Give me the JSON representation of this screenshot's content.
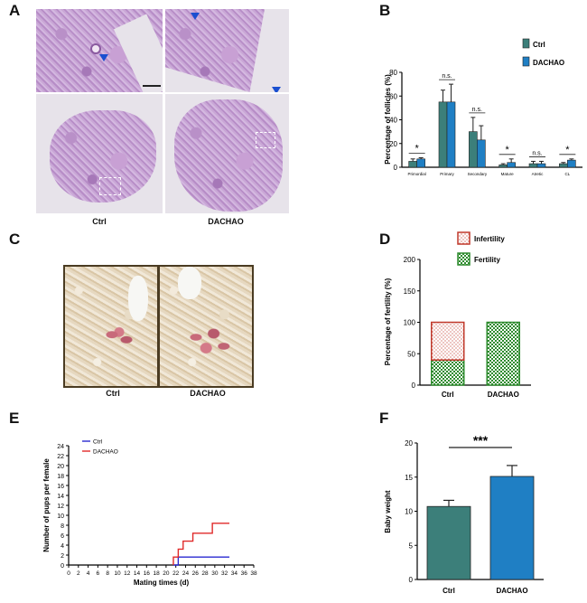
{
  "panels": {
    "A": "A",
    "B": "B",
    "C": "C",
    "D": "D",
    "E": "E",
    "F": "F"
  },
  "panel_a": {
    "captions": [
      "Ctrl",
      "DACHAO"
    ]
  },
  "panel_c": {
    "captions": [
      "Ctrl",
      "DACHAO"
    ]
  },
  "colors": {
    "ctrl_bar": "#3c7f7a",
    "dachao_bar": "#1f7fc4",
    "ctrl_line": "#2a2ad0",
    "dachao_line": "#e02a2a",
    "infertility": "#c0392b",
    "fertility": "#2e8b2e"
  },
  "chart_data": [
    {
      "panel": "B",
      "type": "bar",
      "categories": [
        "Primordial",
        "Primary",
        "Secondary",
        "Mature",
        "Atretic",
        "CL"
      ],
      "series": [
        {
          "name": "Ctrl",
          "values": [
            5,
            55,
            30,
            2,
            3,
            3
          ],
          "errors": [
            2,
            10,
            12,
            1,
            2,
            1
          ]
        },
        {
          "name": "DACHAO",
          "values": [
            7,
            55,
            23,
            4,
            3,
            6
          ],
          "errors": [
            1,
            15,
            12,
            3,
            2,
            1
          ]
        }
      ],
      "significance": [
        "*",
        "n.s.",
        "n.s.",
        "*",
        "n.s.",
        "*"
      ],
      "ylabel": "Percentage of follicles (%)",
      "ylim": [
        0,
        80
      ],
      "yticks": [
        "0",
        "20",
        "40",
        "60",
        "80"
      ],
      "legend": "top-right"
    },
    {
      "panel": "D",
      "type": "bar",
      "stacked": true,
      "categories": [
        "Ctrl",
        "DACHAO"
      ],
      "series": [
        {
          "name": "Infertility",
          "values": [
            60,
            0
          ]
        },
        {
          "name": "Fertility",
          "values": [
            40,
            100
          ]
        }
      ],
      "ylabel": "Percentage of fertility (%)",
      "ylim": [
        0,
        200
      ],
      "yticks": [
        "0",
        "50",
        "100",
        "150",
        "200"
      ],
      "legend": "top"
    },
    {
      "panel": "E",
      "type": "line",
      "step": true,
      "series": [
        {
          "name": "Ctrl",
          "points": [
            [
              21.5,
              0
            ],
            [
              22.5,
              0
            ],
            [
              22.5,
              1.6
            ],
            [
              33,
              1.6
            ]
          ]
        },
        {
          "name": "DACHAO",
          "points": [
            [
              21.5,
              0
            ],
            [
              21.5,
              1.6
            ],
            [
              22.5,
              1.6
            ],
            [
              22.5,
              3.2
            ],
            [
              23.5,
              3.2
            ],
            [
              23.5,
              4.8
            ],
            [
              25.5,
              4.8
            ],
            [
              25.5,
              6.4
            ],
            [
              29.5,
              6.4
            ],
            [
              29.5,
              8.4
            ],
            [
              33,
              8.4
            ]
          ]
        }
      ],
      "xlabel": "Mating times (d)",
      "ylabel": "Number of pups per female",
      "xlim": [
        0,
        38
      ],
      "ylim": [
        0,
        24
      ],
      "xticks": [
        "0",
        "2",
        "4",
        "6",
        "8",
        "10",
        "12",
        "14",
        "16",
        "18",
        "20",
        "22",
        "24",
        "26",
        "28",
        "30",
        "32",
        "34",
        "36",
        "38"
      ],
      "yticks": [
        "0",
        "2",
        "4",
        "6",
        "8",
        "10",
        "12",
        "14",
        "16",
        "18",
        "20",
        "22",
        "24"
      ],
      "legend": "top-left"
    },
    {
      "panel": "F",
      "type": "bar",
      "categories": [
        "Ctrl",
        "DACHAO"
      ],
      "values": [
        10.7,
        15.1
      ],
      "errors": [
        0.9,
        1.6
      ],
      "significance": "***",
      "ylabel": "Baby weight",
      "ylim": [
        0,
        20
      ],
      "yticks": [
        "0",
        "5",
        "10",
        "15",
        "20"
      ]
    }
  ]
}
